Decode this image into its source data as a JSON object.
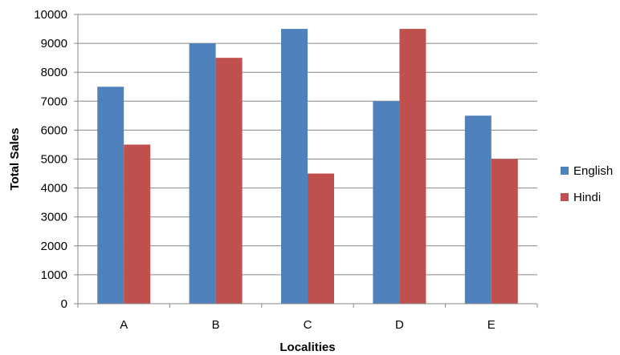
{
  "chart_data": {
    "type": "bar",
    "title": "",
    "xlabel": "Localities",
    "ylabel": "Total Sales",
    "categories": [
      "A",
      "B",
      "C",
      "D",
      "E"
    ],
    "series": [
      {
        "name": "English",
        "color": "#4F81BD",
        "values": [
          7500,
          9000,
          9500,
          7000,
          6500
        ]
      },
      {
        "name": "Hindi",
        "color": "#C0504D",
        "values": [
          5500,
          8500,
          4500,
          9500,
          5000
        ]
      }
    ],
    "ylim": [
      0,
      10000
    ],
    "yticks": [
      "0",
      "1000",
      "2000",
      "3000",
      "4000",
      "5000",
      "6000",
      "7000",
      "8000",
      "9000",
      "10000"
    ],
    "grid": true,
    "legend": "right"
  }
}
